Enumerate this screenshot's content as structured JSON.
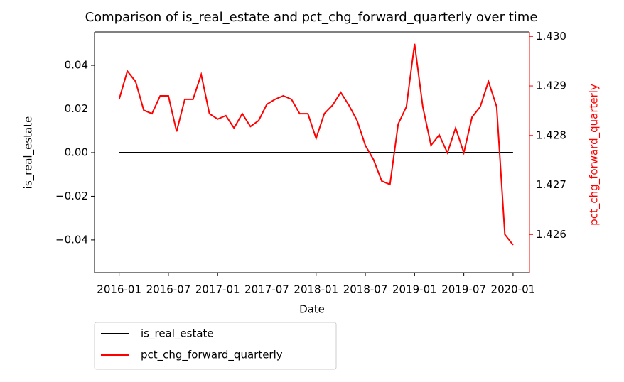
{
  "chart_data": {
    "type": "line",
    "title": "Comparison of is_real_estate and pct_chg_forward_quarterly over time",
    "x_label": "Date",
    "y_label": "is_real_estate",
    "y2_label": "pct_chg_forward_quarterly",
    "x": [
      "2016-01",
      "2016-02",
      "2016-03",
      "2016-04",
      "2016-05",
      "2016-06",
      "2016-07",
      "2016-08",
      "2016-09",
      "2016-10",
      "2016-11",
      "2016-12",
      "2017-01",
      "2017-02",
      "2017-03",
      "2017-04",
      "2017-05",
      "2017-06",
      "2017-07",
      "2017-08",
      "2017-09",
      "2017-10",
      "2017-11",
      "2017-12",
      "2018-01",
      "2018-02",
      "2018-03",
      "2018-04",
      "2018-05",
      "2018-06",
      "2018-07",
      "2018-08",
      "2018-09",
      "2018-10",
      "2018-11",
      "2018-12",
      "2019-01",
      "2019-02",
      "2019-03",
      "2019-04",
      "2019-05",
      "2019-06",
      "2019-07",
      "2019-08",
      "2019-09",
      "2019-10",
      "2019-11",
      "2019-12",
      "2020-01"
    ],
    "series": [
      {
        "name": "is_real_estate",
        "color": "#000000",
        "values": [
          0,
          0,
          0,
          0,
          0,
          0,
          0,
          0,
          0,
          0,
          0,
          0,
          0,
          0,
          0,
          0,
          0,
          0,
          0,
          0,
          0,
          0,
          0,
          0,
          0,
          0,
          0,
          0,
          0,
          0,
          0,
          0,
          0,
          0,
          0,
          0,
          0,
          0,
          0,
          0,
          0,
          0,
          0,
          0,
          0,
          0,
          0,
          0,
          0
        ]
      },
      {
        "name": "pct_chg_forward_quarterly",
        "color": "#ff0000",
        "axis": "y2",
        "values": [
          1.42873,
          1.4293,
          1.42909,
          1.42851,
          1.42844,
          1.4288,
          1.4288,
          1.42808,
          1.42873,
          1.42873,
          1.42923,
          1.42844,
          1.42833,
          1.4284,
          1.42815,
          1.42844,
          1.42818,
          1.4283,
          1.42863,
          1.42873,
          1.4288,
          1.42873,
          1.42844,
          1.42844,
          1.42794,
          1.42844,
          1.42861,
          1.42887,
          1.42861,
          1.4283,
          1.4278,
          1.42751,
          1.42708,
          1.42701,
          1.42823,
          1.42858,
          1.42985,
          1.42858,
          1.4278,
          1.42801,
          1.42765,
          1.42815,
          1.42765,
          1.42837,
          1.42858,
          1.42909,
          1.42858,
          1.426,
          1.42579
        ]
      }
    ],
    "xlim": [
      "2015-10",
      "2020-03"
    ],
    "xticks": [
      "2016-01",
      "2016-07",
      "2017-01",
      "2017-07",
      "2018-01",
      "2018-07",
      "2019-01",
      "2019-07",
      "2020-01"
    ],
    "ylim": [
      -0.055,
      0.0553
    ],
    "yticks": [
      {
        "value": -0.04,
        "label": "−0.04"
      },
      {
        "value": -0.02,
        "label": "−0.02"
      },
      {
        "value": 0,
        "label": "0.00"
      },
      0.02,
      0.04
    ],
    "y2lim": [
      1.42523,
      1.43009
    ],
    "y2ticks": [
      1.426,
      1.427,
      1.428,
      1.429,
      {
        "value": 1.43,
        "label": "1.430"
      }
    ],
    "y2_color": "#ff0000",
    "legend": "below"
  }
}
